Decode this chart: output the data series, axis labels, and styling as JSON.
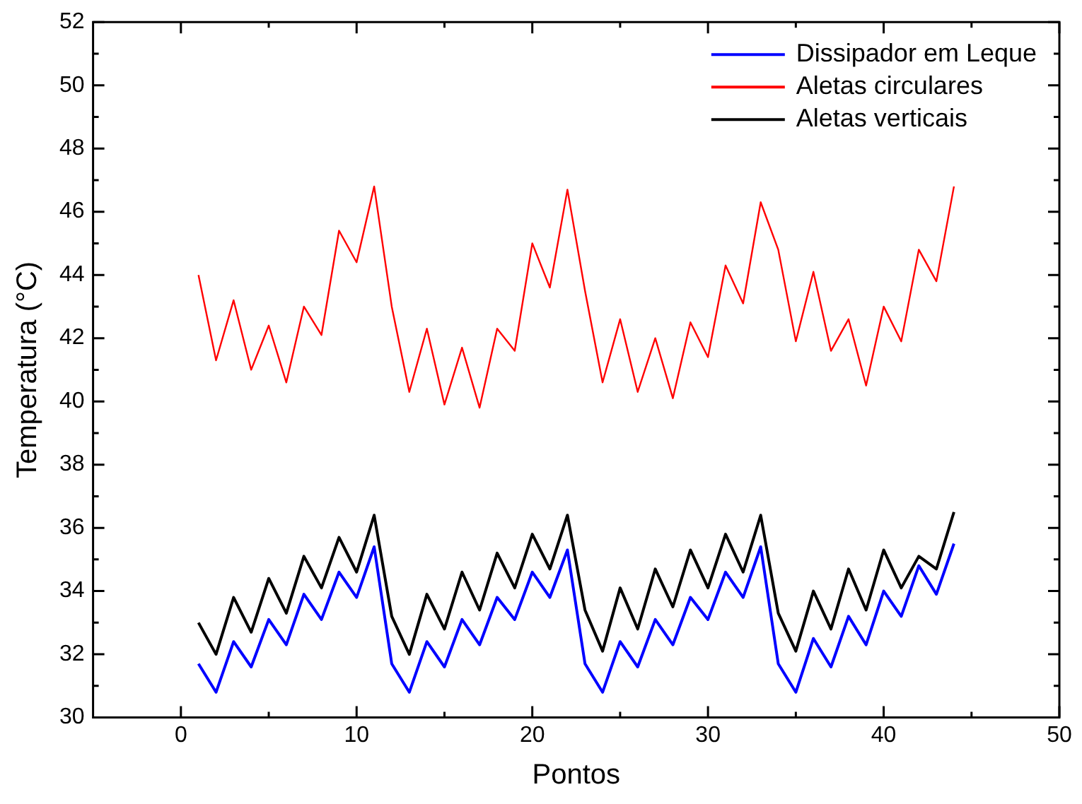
{
  "chart_data": {
    "type": "line",
    "xlabel": "Pontos",
    "ylabel": "Temperatura (°C)",
    "xlim": [
      -5,
      50
    ],
    "xticks": [
      0,
      10,
      20,
      30,
      40,
      50
    ],
    "ylim": [
      30,
      52
    ],
    "yticks": [
      30,
      32,
      34,
      36,
      38,
      40,
      42,
      44,
      46,
      48,
      50,
      52
    ],
    "grid": false,
    "legend": "top right",
    "marker": "none",
    "line_style": "solid",
    "x": [
      1,
      2,
      3,
      4,
      5,
      6,
      7,
      8,
      9,
      10,
      11,
      12,
      13,
      14,
      15,
      16,
      17,
      18,
      19,
      20,
      21,
      22,
      23,
      24,
      25,
      26,
      27,
      28,
      29,
      30,
      31,
      32,
      33,
      34,
      35,
      36,
      37,
      38,
      39,
      40,
      41,
      42,
      43,
      44
    ],
    "series": [
      {
        "name": "Dissipador em Leque",
        "color": "#0000ff",
        "values": [
          31.7,
          30.8,
          32.4,
          31.6,
          33.1,
          32.3,
          33.9,
          33.1,
          34.6,
          33.8,
          35.4,
          31.7,
          30.8,
          32.4,
          31.6,
          33.1,
          32.3,
          33.8,
          33.1,
          34.6,
          33.8,
          35.3,
          31.7,
          30.8,
          32.4,
          31.6,
          33.1,
          32.3,
          33.8,
          33.1,
          34.6,
          33.8,
          35.4,
          31.7,
          30.8,
          32.5,
          31.6,
          33.2,
          32.3,
          34.0,
          33.2,
          34.8,
          33.9,
          35.5
        ]
      },
      {
        "name": "Aletas circulares",
        "color": "#ff0000",
        "values": [
          44.0,
          41.3,
          43.2,
          41.0,
          42.4,
          40.6,
          43.0,
          42.1,
          45.4,
          44.4,
          46.8,
          43.0,
          40.3,
          42.3,
          39.9,
          41.7,
          39.8,
          42.3,
          41.6,
          45.0,
          43.6,
          46.7,
          43.5,
          40.6,
          42.6,
          40.3,
          42.0,
          40.1,
          42.5,
          41.4,
          44.3,
          43.1,
          46.3,
          44.8,
          41.9,
          44.1,
          41.6,
          42.6,
          40.5,
          43.0,
          41.9,
          44.8,
          43.8,
          46.8
        ]
      },
      {
        "name": "Aletas verticais",
        "color": "#000000",
        "values": [
          33.0,
          32.0,
          33.8,
          32.7,
          34.4,
          33.3,
          35.1,
          34.1,
          35.7,
          34.6,
          36.4,
          33.2,
          32.0,
          33.9,
          32.8,
          34.6,
          33.4,
          35.2,
          34.1,
          35.8,
          34.7,
          36.4,
          33.4,
          32.1,
          34.1,
          32.8,
          34.7,
          33.5,
          35.3,
          34.1,
          35.8,
          34.6,
          36.4,
          33.3,
          32.1,
          34.0,
          32.8,
          34.7,
          33.4,
          35.3,
          34.1,
          35.1,
          34.7,
          36.5
        ]
      }
    ]
  }
}
